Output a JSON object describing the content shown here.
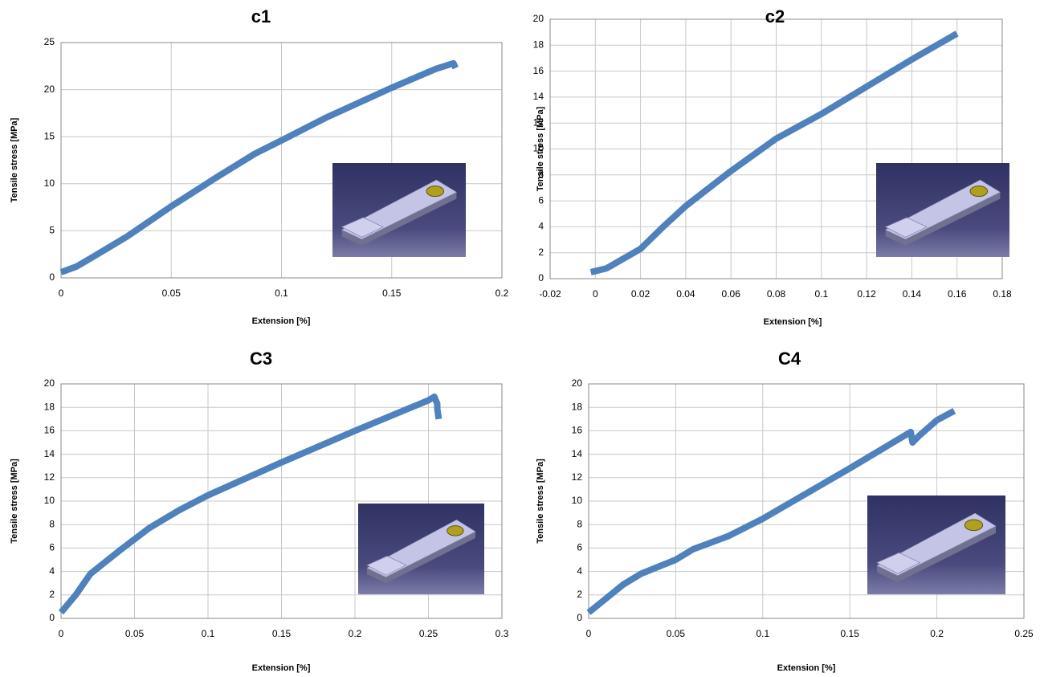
{
  "chart_data": [
    {
      "type": "line",
      "title": "c1",
      "xlabel": "Extension [%]",
      "ylabel": "Tensile stress [MPa]",
      "color": "#4f81bd",
      "grid": true,
      "xlim": [
        0,
        0.2
      ],
      "xticks": [
        0,
        0.05,
        0.1,
        0.15,
        0.2
      ],
      "ylim": [
        0,
        25
      ],
      "yticks": [
        0,
        5,
        10,
        15,
        20,
        25
      ],
      "x": [
        0,
        0.007,
        0.015,
        0.03,
        0.05,
        0.07,
        0.088,
        0.1,
        0.12,
        0.15,
        0.17,
        0.178,
        0.179
      ],
      "values": [
        0.6,
        1.2,
        2.3,
        4.4,
        7.6,
        10.6,
        13.2,
        14.6,
        17.0,
        20.2,
        22.2,
        22.8,
        22.3
      ]
    },
    {
      "type": "line",
      "title": "c2",
      "xlabel": "Extension [%]",
      "ylabel": "Tensile stress [MPa]",
      "color": "#4f81bd",
      "grid": true,
      "xlim": [
        -0.02,
        0.18
      ],
      "xticks": [
        -0.02,
        0,
        0.02,
        0.04,
        0.06,
        0.08,
        0.1,
        0.12,
        0.14,
        0.16,
        0.18
      ],
      "ylim": [
        0,
        20
      ],
      "yticks": [
        0,
        2,
        4,
        6,
        8,
        10,
        12,
        14,
        16,
        18,
        20
      ],
      "x": [
        -0.002,
        0.005,
        0.01,
        0.02,
        0.03,
        0.04,
        0.06,
        0.08,
        0.1,
        0.12,
        0.14,
        0.16
      ],
      "values": [
        0.5,
        0.8,
        1.3,
        2.3,
        4.0,
        5.6,
        8.3,
        10.8,
        12.7,
        14.8,
        16.9,
        18.9
      ]
    },
    {
      "type": "line",
      "title": "C3",
      "xlabel": "Extension [%]",
      "ylabel": "Tensile stress [MPa]",
      "color": "#4f81bd",
      "grid": true,
      "xlim": [
        0,
        0.3
      ],
      "xticks": [
        0,
        0.05,
        0.1,
        0.15,
        0.2,
        0.25,
        0.3
      ],
      "ylim": [
        0,
        20
      ],
      "yticks": [
        0,
        2,
        4,
        6,
        8,
        10,
        12,
        14,
        16,
        18,
        20
      ],
      "x": [
        0,
        0.01,
        0.02,
        0.04,
        0.06,
        0.08,
        0.1,
        0.15,
        0.2,
        0.25,
        0.254,
        0.256,
        0.256,
        0.257
      ],
      "values": [
        0.5,
        2.0,
        3.8,
        5.8,
        7.7,
        9.2,
        10.5,
        13.3,
        16.0,
        18.6,
        18.9,
        18.3,
        17.9,
        17.0
      ]
    },
    {
      "type": "line",
      "title": "C4",
      "xlabel": "Extension [%]",
      "ylabel": "Tensile stress [MPa]",
      "color": "#4f81bd",
      "grid": true,
      "xlim": [
        0,
        0.25
      ],
      "xticks": [
        0,
        0.05,
        0.1,
        0.15,
        0.2,
        0.25
      ],
      "ylim": [
        0,
        20
      ],
      "yticks": [
        0,
        2,
        4,
        6,
        8,
        10,
        12,
        14,
        16,
        18,
        20
      ],
      "x": [
        0,
        0.01,
        0.02,
        0.03,
        0.05,
        0.06,
        0.08,
        0.1,
        0.15,
        0.185,
        0.186,
        0.19,
        0.2,
        0.21
      ],
      "values": [
        0.5,
        1.7,
        2.9,
        3.8,
        5.0,
        5.9,
        7.0,
        8.5,
        12.8,
        15.9,
        15.0,
        15.6,
        16.9,
        17.7
      ]
    }
  ]
}
